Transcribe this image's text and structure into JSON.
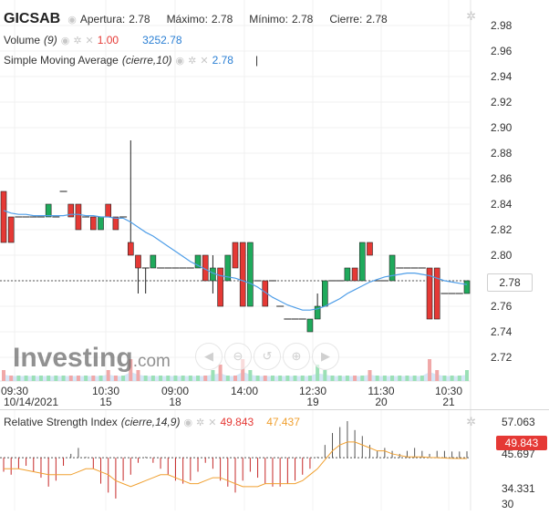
{
  "legend": {
    "symbol": "GICSAB",
    "apertura_label": "Apertura:",
    "apertura_value": "2.78",
    "maximo_label": "Máximo:",
    "maximo_value": "2.78",
    "minimo_label": "Mínimo:",
    "minimo_value": "2.78",
    "cierre_label": "Cierre:",
    "cierre_value": "2.78",
    "volume_label": "Volume",
    "volume_param": "(9)",
    "volume_value_red": "1.00",
    "volume_value_blue": "3252.78",
    "sma_label": "Simple Moving Average",
    "sma_param": "(cierre,10)",
    "sma_value": "2.78"
  },
  "rsi_legend": {
    "label": "Relative Strength Index",
    "param": "(cierre,14,9)",
    "value_red": "49.843",
    "value_orange": "47.437"
  },
  "logo": {
    "main": "Investing",
    "suffix": ".com"
  },
  "price_tag": "2.78",
  "rsi_tag": "49.843",
  "colors": {
    "up": "#1faa5c",
    "down": "#e53935",
    "sma": "#4f9ee8",
    "rsi_signal": "#f0a030",
    "rsi_bars": "#c62828",
    "volume": "#b9d7f2"
  },
  "icons": [
    "eye-icon",
    "gear-icon",
    "close-icon",
    "zoom-out-icon",
    "zoom-in-icon",
    "reset-icon",
    "scroll-left-icon",
    "scroll-right-icon"
  ],
  "chart_data": {
    "type": "candlestick",
    "y_ticks": [
      "2.98",
      "2.96",
      "2.94",
      "2.92",
      "2.90",
      "2.88",
      "2.86",
      "2.84",
      "2.82",
      "2.80",
      "2.78",
      "2.76",
      "2.74",
      "2.72"
    ],
    "ylim": [
      2.71,
      2.99
    ],
    "x_ticks": [
      {
        "time": "09:30",
        "date": "10/14/2021"
      },
      {
        "time": "10:30",
        "date": "15"
      },
      {
        "time": "09:00",
        "date": "18"
      },
      {
        "time": "14:00",
        "date": ""
      },
      {
        "time": "12:30",
        "date": "19"
      },
      {
        "time": "11:30",
        "date": "20"
      },
      {
        "time": "10:30",
        "date": "21"
      }
    ],
    "candles": [
      {
        "o": 2.85,
        "h": 2.85,
        "l": 2.81,
        "c": 2.81
      },
      {
        "o": 2.83,
        "h": 2.83,
        "l": 2.81,
        "c": 2.81
      },
      {
        "o": 2.83,
        "h": 2.83,
        "l": 2.83,
        "c": 2.83
      },
      {
        "o": 2.83,
        "h": 2.83,
        "l": 2.83,
        "c": 2.83
      },
      {
        "o": 2.83,
        "h": 2.83,
        "l": 2.83,
        "c": 2.83
      },
      {
        "o": 2.83,
        "h": 2.83,
        "l": 2.83,
        "c": 2.83
      },
      {
        "o": 2.83,
        "h": 2.84,
        "l": 2.83,
        "c": 2.84
      },
      {
        "o": 2.83,
        "h": 2.83,
        "l": 2.83,
        "c": 2.83
      },
      {
        "o": 2.85,
        "h": 2.85,
        "l": 2.85,
        "c": 2.85
      },
      {
        "o": 2.84,
        "h": 2.84,
        "l": 2.83,
        "c": 2.83
      },
      {
        "o": 2.84,
        "h": 2.84,
        "l": 2.82,
        "c": 2.82
      },
      {
        "o": 2.83,
        "h": 2.83,
        "l": 2.83,
        "c": 2.83
      },
      {
        "o": 2.83,
        "h": 2.83,
        "l": 2.82,
        "c": 2.82
      },
      {
        "o": 2.82,
        "h": 2.83,
        "l": 2.82,
        "c": 2.83
      },
      {
        "o": 2.84,
        "h": 2.84,
        "l": 2.83,
        "c": 2.83
      },
      {
        "o": 2.83,
        "h": 2.83,
        "l": 2.82,
        "c": 2.82
      },
      {
        "o": 2.83,
        "h": 2.83,
        "l": 2.83,
        "c": 2.83
      },
      {
        "o": 2.81,
        "h": 2.89,
        "l": 2.8,
        "c": 2.8
      },
      {
        "o": 2.8,
        "h": 2.8,
        "l": 2.77,
        "c": 2.79
      },
      {
        "o": 2.79,
        "h": 2.79,
        "l": 2.77,
        "c": 2.79
      },
      {
        "o": 2.79,
        "h": 2.8,
        "l": 2.79,
        "c": 2.8
      },
      {
        "o": 2.79,
        "h": 2.79,
        "l": 2.79,
        "c": 2.79
      },
      {
        "o": 2.79,
        "h": 2.79,
        "l": 2.79,
        "c": 2.79
      },
      {
        "o": 2.79,
        "h": 2.79,
        "l": 2.79,
        "c": 2.79
      },
      {
        "o": 2.79,
        "h": 2.79,
        "l": 2.79,
        "c": 2.79
      },
      {
        "o": 2.79,
        "h": 2.79,
        "l": 2.79,
        "c": 2.79
      },
      {
        "o": 2.79,
        "h": 2.8,
        "l": 2.79,
        "c": 2.8
      },
      {
        "o": 2.8,
        "h": 2.8,
        "l": 2.78,
        "c": 2.78
      },
      {
        "o": 2.78,
        "h": 2.8,
        "l": 2.77,
        "c": 2.79
      },
      {
        "o": 2.79,
        "h": 2.79,
        "l": 2.76,
        "c": 2.76
      },
      {
        "o": 2.78,
        "h": 2.8,
        "l": 2.78,
        "c": 2.8
      },
      {
        "o": 2.81,
        "h": 2.81,
        "l": 2.79,
        "c": 2.79
      },
      {
        "o": 2.81,
        "h": 2.81,
        "l": 2.76,
        "c": 2.76
      },
      {
        "o": 2.76,
        "h": 2.81,
        "l": 2.76,
        "c": 2.81
      },
      {
        "o": 2.78,
        "h": 2.78,
        "l": 2.78,
        "c": 2.78
      },
      {
        "o": 2.78,
        "h": 2.78,
        "l": 2.76,
        "c": 2.76
      },
      {
        "o": 2.78,
        "h": 2.78,
        "l": 2.78,
        "c": 2.78
      },
      {
        "o": 2.76,
        "h": 2.76,
        "l": 2.76,
        "c": 2.76
      },
      {
        "o": 2.75,
        "h": 2.75,
        "l": 2.75,
        "c": 2.75
      },
      {
        "o": 2.75,
        "h": 2.75,
        "l": 2.75,
        "c": 2.75
      },
      {
        "o": 2.75,
        "h": 2.75,
        "l": 2.75,
        "c": 2.75
      },
      {
        "o": 2.74,
        "h": 2.75,
        "l": 2.74,
        "c": 2.75
      },
      {
        "o": 2.75,
        "h": 2.77,
        "l": 2.75,
        "c": 2.76
      },
      {
        "o": 2.76,
        "h": 2.78,
        "l": 2.76,
        "c": 2.78
      },
      {
        "o": 2.78,
        "h": 2.78,
        "l": 2.78,
        "c": 2.78
      },
      {
        "o": 2.78,
        "h": 2.78,
        "l": 2.78,
        "c": 2.78
      },
      {
        "o": 2.78,
        "h": 2.79,
        "l": 2.78,
        "c": 2.79
      },
      {
        "o": 2.79,
        "h": 2.79,
        "l": 2.78,
        "c": 2.78
      },
      {
        "o": 2.78,
        "h": 2.81,
        "l": 2.78,
        "c": 2.81
      },
      {
        "o": 2.81,
        "h": 2.81,
        "l": 2.8,
        "c": 2.8
      },
      {
        "o": 2.78,
        "h": 2.78,
        "l": 2.78,
        "c": 2.78
      },
      {
        "o": 2.78,
        "h": 2.78,
        "l": 2.78,
        "c": 2.78
      },
      {
        "o": 2.78,
        "h": 2.8,
        "l": 2.78,
        "c": 2.8
      },
      {
        "o": 2.79,
        "h": 2.79,
        "l": 2.79,
        "c": 2.79
      },
      {
        "o": 2.79,
        "h": 2.79,
        "l": 2.79,
        "c": 2.79
      },
      {
        "o": 2.79,
        "h": 2.79,
        "l": 2.79,
        "c": 2.79
      },
      {
        "o": 2.79,
        "h": 2.79,
        "l": 2.79,
        "c": 2.79
      },
      {
        "o": 2.79,
        "h": 2.79,
        "l": 2.75,
        "c": 2.75
      },
      {
        "o": 2.79,
        "h": 2.79,
        "l": 2.75,
        "c": 2.75
      },
      {
        "o": 2.77,
        "h": 2.77,
        "l": 2.77,
        "c": 2.77
      },
      {
        "o": 2.77,
        "h": 2.77,
        "l": 2.77,
        "c": 2.77
      },
      {
        "o": 2.77,
        "h": 2.77,
        "l": 2.77,
        "c": 2.77
      },
      {
        "o": 2.77,
        "h": 2.78,
        "l": 2.77,
        "c": 2.78
      }
    ],
    "sma": [
      2.835,
      2.833,
      2.832,
      2.832,
      2.831,
      2.831,
      2.831,
      2.831,
      2.831,
      2.832,
      2.832,
      2.831,
      2.831,
      2.83,
      2.83,
      2.829,
      2.829,
      2.826,
      2.822,
      2.818,
      2.815,
      2.811,
      2.807,
      2.803,
      2.799,
      2.795,
      2.792,
      2.789,
      2.786,
      2.784,
      2.783,
      2.782,
      2.78,
      2.778,
      2.775,
      2.771,
      2.767,
      2.764,
      2.761,
      2.759,
      2.757,
      2.757,
      2.758,
      2.76,
      2.763,
      2.766,
      2.77,
      2.773,
      2.776,
      2.779,
      2.781,
      2.783,
      2.784,
      2.785,
      2.786,
      2.786,
      2.785,
      2.784,
      2.782,
      2.78,
      2.779,
      2.778,
      2.777
    ],
    "volume": [
      2,
      1,
      1,
      1,
      1,
      1,
      1,
      1,
      1,
      1,
      1,
      1,
      1,
      1,
      2,
      1,
      1,
      4,
      2,
      1,
      1,
      1,
      1,
      1,
      1,
      1,
      1,
      1,
      2,
      3,
      1,
      1,
      4,
      2,
      1,
      1,
      1,
      1,
      1,
      1,
      1,
      1,
      3,
      2,
      1,
      1,
      1,
      1,
      1,
      2,
      1,
      1,
      1,
      1,
      1,
      1,
      1,
      4,
      2,
      1,
      1,
      1,
      2
    ],
    "rsi_y_ticks": [
      "57.063",
      "45.697",
      "34.331",
      "30"
    ],
    "rsi_ylim": [
      30,
      60
    ],
    "rsi": [
      43,
      42,
      44,
      45,
      43,
      41,
      38,
      40,
      45,
      49,
      51,
      48,
      44,
      39,
      36,
      34,
      40,
      42,
      46,
      48,
      46,
      44,
      42,
      40,
      39,
      40,
      43,
      46,
      44,
      40,
      38,
      36,
      40,
      43,
      41,
      39,
      38,
      38,
      39,
      40,
      42,
      44,
      48,
      52,
      56,
      58,
      60,
      57,
      55,
      52,
      50,
      51,
      50,
      49,
      50,
      51,
      50,
      49,
      50,
      50,
      49.8,
      49.8,
      49.843
    ],
    "rsi_signal": [
      44,
      44,
      44,
      43.5,
      43,
      42.5,
      42,
      42,
      42,
      42,
      43,
      44,
      44,
      43,
      42,
      40,
      39,
      38,
      39,
      40,
      41,
      42,
      42,
      41,
      40,
      39,
      39,
      40,
      41,
      41,
      40,
      39,
      38,
      38,
      38,
      39,
      39,
      39,
      39,
      39,
      40,
      42,
      44,
      47,
      50,
      52,
      53,
      53,
      52,
      51,
      50,
      50,
      49,
      48.5,
      48,
      48,
      48,
      47.8,
      47.7,
      47.6,
      47.5,
      47.45,
      47.437
    ]
  }
}
